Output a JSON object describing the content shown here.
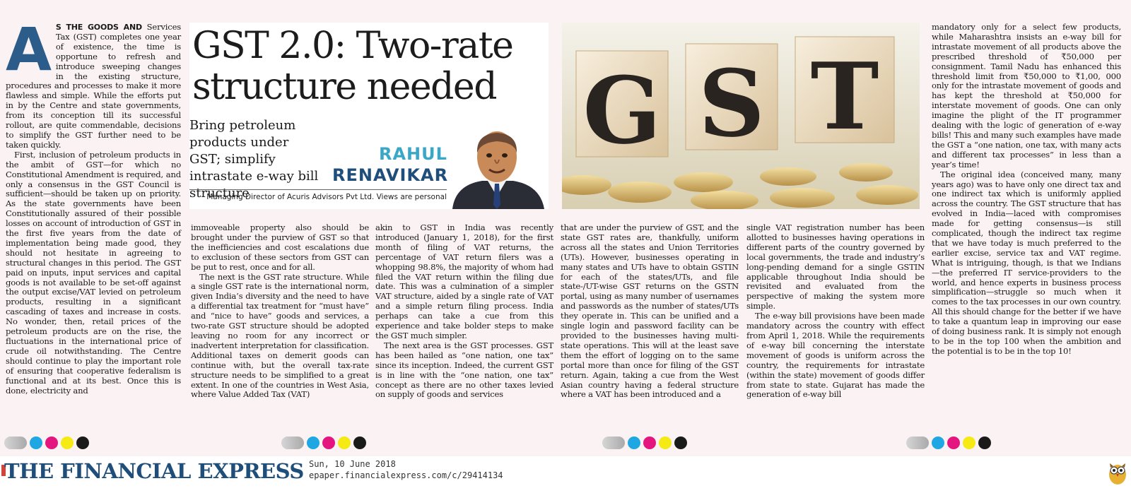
{
  "article": {
    "headline": "GST 2.0: Two-rate structure needed",
    "subhead": "Bring petroleum products under GST; simplify intrastate e-way bill structure",
    "author_first": "RAHUL",
    "author_last": "RENAVIKAR",
    "credit": "Managing Director of Acuris Advisors Pvt Ltd. Views are personal",
    "dropcap": "A",
    "lead_in": "S THE GOODS AND",
    "col1": [
      "Services Tax (GST) completes one year of existence, the time is opportune to refresh and introduce sweeping changes in the existing structure, procedures and processes to make it more flawless and simple. While the efforts put in by the Centre and state governments, from its conception till its successful rollout, are quite commendable, decisions to simplify the GST further need to be taken quickly.",
      "First, inclusion of petroleum products in the ambit of GST—for which no Constitutional Amendment is required, and only a consensus in the GST Council is sufficient—should be taken up on priority. As the state governments have been Constitutionally assured of their possible losses on account of introduction of GST in the first five years from the date of implementation being made good, they should not hesitate in agreeing to structural changes in this period. The GST paid on inputs, input services and capital goods is not available to be set-off against the output excise/VAT levied on petroleum products, resulting in a significant cascading of taxes and increase in costs. No wonder, then, retail prices of the petroleum products are on the rise, the fluctuations in the international price of crude oil notwithstanding. The Centre should continue to play the important role of ensuring that cooperative federalism is functional and at its best. Once this is done, electricity and"
    ],
    "col2": [
      "immoveable property also should be brought under the purview of GST so that the inefficiencies and cost escalations due to exclusion of these sectors from GST can be put to rest, once and for all.",
      "The next is the GST rate structure. While a single GST rate is the international norm, given India’s diversity and the need to have a differential tax treatment for “must have” and “nice to have” goods and services, a two-rate GST structure should be adopted leaving no room for any incorrect or inadvertent interpretation for classification. Additional taxes on demerit goods can continue with, but the overall tax-rate structure needs to be simplified to a great extent. In one of the countries in West Asia, where Value Added Tax (VAT)"
    ],
    "col3": [
      "akin to GST in India was recently introduced (January 1, 2018), for the first month of filing of VAT returns, the percentage of VAT return filers was a whopping 98.8%, the majority of whom had filed the VAT return within the filing due date. This was a culmination of a simpler VAT structure, aided by a single rate of VAT and a simple return filing process. India perhaps can take a cue from this experience and take bolder steps to make the GST much simpler.",
      "The next area is the GST processes. GST has been hailed as “one nation, one tax” since its inception. Indeed, the current GST is in line with the “one nation, one tax” concept as there are no other taxes levied on supply of goods and services"
    ],
    "col4": [
      "that are under the purview of GST, and the state GST rates are, thankfully, uniform across all the states and Union Territories (UTs). However, businesses operating in many states and UTs have to obtain GSTIN for each of the states/UTs, and file state-/UT-wise GST returns on the GSTN portal, using as many number of usernames and passwords as the number of states/UTs they operate in. This can be unified and a single login and password facility can be provided to the businesses having multi-state operations. This will at the least save them the effort of logging on to the same portal more than once for filing of the GST return. Again, taking a cue from the West Asian country having a federal structure where a VAT has been introduced and a"
    ],
    "col5": [
      "single VAT registration number has been allotted to businesses having operations in different parts of the country governed by local governments, the trade and industry’s long-pending demand for a single GSTIN applicable throughout India should be revisited and evaluated from the perspective of making the system more simple.",
      "The e-way bill provisions have been made mandatory across the country with effect from April 1, 2018. While the requirements of e-way bill concerning the interstate movement of goods is uniform across the country, the requirements for intrastate (within the state) movement of goods differ from state to state. Gujarat has made the generation of e-way bill"
    ],
    "col6": [
      "mandatory only for a select few products, while Maharashtra insists an e-way bill for intrastate movement of all products above the prescribed threshold of ₹50,000 per consignment. Tamil Nadu has enhanced this threshold limit from ₹50,000 to ₹1,00, 000 only for the intrastate movement of goods and has kept the threshold at ₹50,000 for interstate movement of goods. One can only imagine the plight of the IT programmer dealing with the logic of generation of e-way bills! This and many such examples have made the GST a “one nation, one tax, with many acts and different tax processes” in less than a year’s time!",
      "The original idea (conceived many, many years ago) was to have only one direct tax and one indirect tax which is uniformly applied across the country. The GST structure that has evolved in India—laced with compromises made for getting consensus—is still complicated, though the indirect tax regime that we have today is much preferred to the earlier excise, service tax and VAT regime. What is intriguing, though, is that we Indians—the preferred IT service-providers to the world, and hence experts in business process simplification—struggle so much when it comes to the tax processes in our own country. All this should change for the better if we have to take a quantum leap in improving our ease of doing business rank. It is simply not enough to be in the top 100 when the ambition and the potential is to be in the top 10!"
    ]
  },
  "image": {
    "gst_letters": [
      "G",
      "S",
      "T"
    ]
  },
  "footer": {
    "publication": "THE FINANCIAL EXPRESS",
    "date": "Sun, 10 June 2018",
    "url": "epaper.financialexpress.com/c/29414134"
  },
  "colors": {
    "brand_blue": "#1f4e7a",
    "author_cyan": "#3aa7c9",
    "dropcap": "#2b5c8a"
  }
}
